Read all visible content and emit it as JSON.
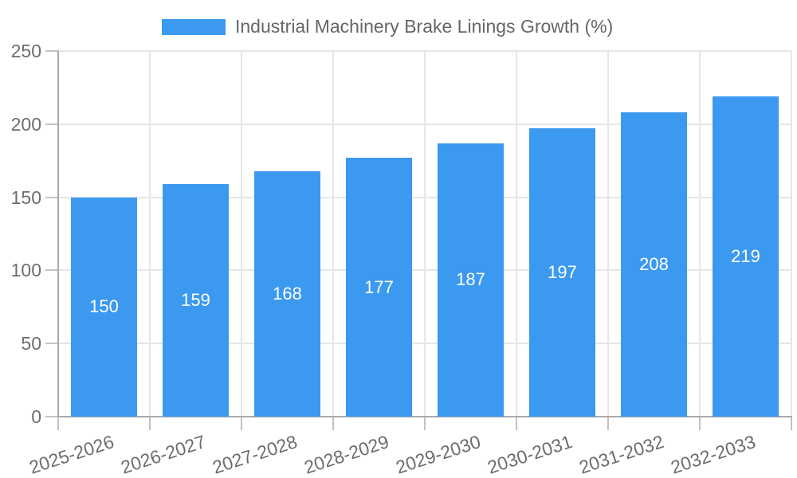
{
  "chart_data": {
    "type": "bar",
    "title": "Industrial Machinery Brake Linings Growth (%)",
    "legend": {
      "label": "Industrial Machinery Brake Linings Growth (%)",
      "position": "top"
    },
    "categories": [
      "2025-2026",
      "2026-2027",
      "2027-2028",
      "2028-2029",
      "2029-2030",
      "2030-2031",
      "2031-2032",
      "2032-2033"
    ],
    "values": [
      150,
      159,
      168,
      177,
      187,
      197,
      208,
      219
    ],
    "value_labels": [
      "150",
      "159",
      "168",
      "177",
      "187",
      "197",
      "208",
      "219"
    ],
    "xlabel": "",
    "ylabel": "",
    "ylim": [
      0,
      250
    ],
    "yticks": [
      0,
      50,
      100,
      150,
      200,
      250
    ],
    "grid": true,
    "legend_position": "top",
    "colors": {
      "bar": "#3b99f0",
      "value_label": "#ffffff",
      "grid": "#e6e6e6",
      "axis": "#ababab",
      "tick": "#c2c2c2",
      "tick_label": "#6d6d6d",
      "legend_text": "#666666",
      "background": "#ffffff"
    }
  }
}
